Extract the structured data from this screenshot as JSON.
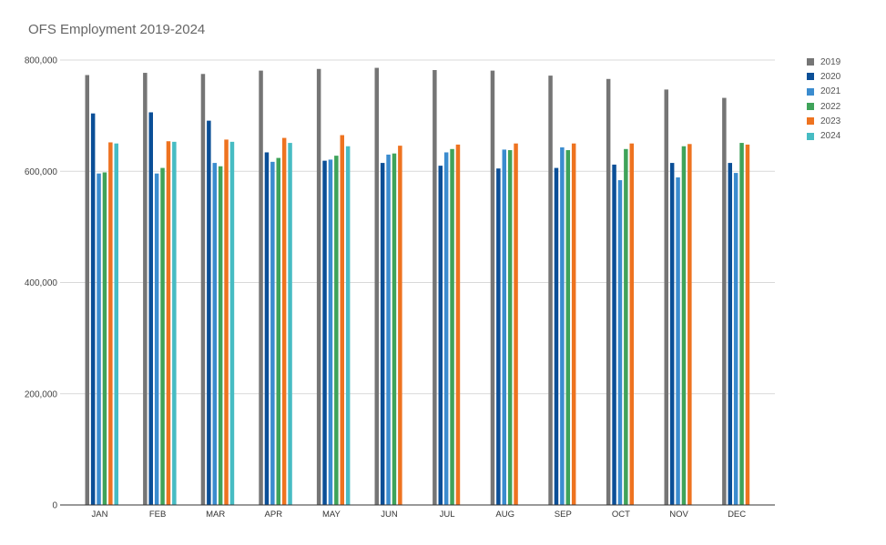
{
  "chart_data": {
    "type": "bar",
    "title": "OFS Employment 2019-2024",
    "xlabel": "",
    "ylabel": "",
    "ylim": [
      0,
      800000
    ],
    "yticks": [
      0,
      200000,
      400000,
      600000,
      800000
    ],
    "ytick_labels": [
      "0",
      "200,000",
      "400,000",
      "600,000",
      "800,000"
    ],
    "grid": true,
    "legend_position": "right",
    "categories": [
      "JAN",
      "FEB",
      "MAR",
      "APR",
      "MAY",
      "JUN",
      "JUL",
      "AUG",
      "SEP",
      "OCT",
      "NOV",
      "DEC"
    ],
    "series": [
      {
        "name": "2019",
        "color": "#757575",
        "values": [
          773000,
          777000,
          775000,
          781000,
          784000,
          786000,
          782000,
          781000,
          772000,
          766000,
          747000,
          732000
        ]
      },
      {
        "name": "2020",
        "color": "#0b4f97",
        "values": [
          704000,
          706000,
          691000,
          634000,
          619000,
          615000,
          610000,
          605000,
          606000,
          612000,
          615000,
          615000
        ]
      },
      {
        "name": "2021",
        "color": "#3b8ccf",
        "values": [
          596000,
          596000,
          615000,
          617000,
          621000,
          630000,
          634000,
          639000,
          643000,
          584000,
          589000,
          597000
        ]
      },
      {
        "name": "2022",
        "color": "#3fa35a",
        "values": [
          598000,
          606000,
          609000,
          624000,
          628000,
          632000,
          640000,
          638000,
          638000,
          640000,
          645000,
          651000
        ]
      },
      {
        "name": "2023",
        "color": "#ee7320",
        "values": [
          652000,
          654000,
          657000,
          660000,
          665000,
          646000,
          648000,
          650000,
          650000,
          650000,
          649000,
          648000
        ]
      },
      {
        "name": "2024",
        "color": "#47bcc3",
        "values": [
          650000,
          653000,
          653000,
          651000,
          645000,
          null,
          null,
          null,
          null,
          null,
          null,
          null
        ]
      }
    ]
  }
}
